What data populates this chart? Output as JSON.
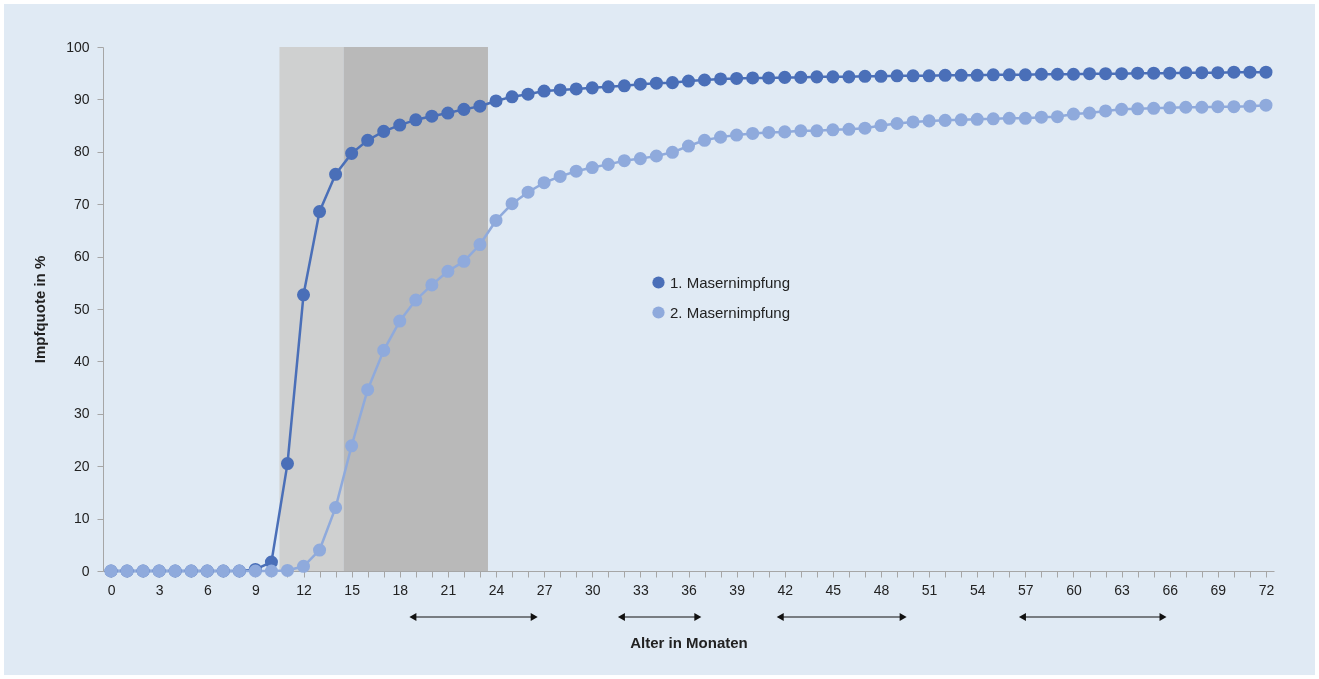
{
  "chart_data": {
    "type": "line",
    "xlabel": "Alter in Monaten",
    "ylabel": "Impfquote in %",
    "x": [
      0,
      1,
      2,
      3,
      4,
      5,
      6,
      7,
      8,
      9,
      10,
      11,
      12,
      13,
      14,
      15,
      16,
      17,
      18,
      19,
      20,
      21,
      22,
      23,
      24,
      25,
      26,
      27,
      28,
      29,
      30,
      31,
      32,
      33,
      34,
      35,
      36,
      37,
      38,
      39,
      40,
      41,
      42,
      43,
      44,
      45,
      46,
      47,
      48,
      49,
      50,
      51,
      52,
      53,
      54,
      55,
      56,
      57,
      58,
      59,
      60,
      61,
      62,
      63,
      64,
      65,
      66,
      67,
      68,
      69,
      70,
      71,
      72
    ],
    "series": [
      {
        "name": "1. Masernimpfung",
        "color": "#4a6fb8",
        "values": [
          0,
          0,
          0,
          0,
          0,
          0,
          0,
          0,
          0,
          0.3,
          1.7,
          20.5,
          52.7,
          68.6,
          75.7,
          79.7,
          82.2,
          83.9,
          85.1,
          86.1,
          86.8,
          87.4,
          88.1,
          88.7,
          89.7,
          90.5,
          91.0,
          91.6,
          91.8,
          92.0,
          92.2,
          92.4,
          92.6,
          92.9,
          93.1,
          93.2,
          93.5,
          93.7,
          93.9,
          94.0,
          94.1,
          94.1,
          94.2,
          94.2,
          94.3,
          94.3,
          94.3,
          94.4,
          94.4,
          94.5,
          94.5,
          94.5,
          94.6,
          94.6,
          94.6,
          94.7,
          94.7,
          94.7,
          94.8,
          94.8,
          94.8,
          94.9,
          94.9,
          94.9,
          95.0,
          95.0,
          95.0,
          95.1,
          95.1,
          95.1,
          95.2,
          95.2,
          95.2
        ]
      },
      {
        "name": "2. Masernimpfung",
        "color": "#8faadc",
        "values": [
          0,
          0,
          0,
          0,
          0,
          0,
          0,
          0,
          0,
          0,
          0,
          0.1,
          0.9,
          4.0,
          12.1,
          23.9,
          34.6,
          42.1,
          47.7,
          51.7,
          54.6,
          57.2,
          59.1,
          62.3,
          66.9,
          70.1,
          72.3,
          74.1,
          75.3,
          76.3,
          77.0,
          77.6,
          78.3,
          78.7,
          79.2,
          79.9,
          81.1,
          82.2,
          82.8,
          83.2,
          83.5,
          83.7,
          83.8,
          84.0,
          84.0,
          84.2,
          84.3,
          84.5,
          85.0,
          85.4,
          85.7,
          85.9,
          86.0,
          86.1,
          86.2,
          86.3,
          86.4,
          86.4,
          86.6,
          86.7,
          87.2,
          87.4,
          87.8,
          88.1,
          88.2,
          88.3,
          88.4,
          88.5,
          88.5,
          88.6,
          88.6,
          88.7,
          88.9
        ]
      }
    ],
    "xlim": [
      -0.5,
      72.5
    ],
    "xticks": [
      0,
      {
        "value": 1,
        "label": null
      },
      {
        "value": 2,
        "label": null
      },
      3,
      {
        "value": 4,
        "label": null
      },
      {
        "value": 5,
        "label": null
      },
      6,
      {
        "value": 7,
        "label": null
      },
      {
        "value": 8,
        "label": null
      },
      9,
      {
        "value": 10,
        "label": null
      },
      {
        "value": 11,
        "label": null
      },
      12,
      {
        "value": 13,
        "label": null
      },
      {
        "value": 14,
        "label": null
      },
      15,
      {
        "value": 16,
        "label": null
      },
      {
        "value": 17,
        "label": null
      },
      18,
      {
        "value": 19,
        "label": null
      },
      {
        "value": 20,
        "label": null
      },
      21,
      {
        "value": 22,
        "label": null
      },
      {
        "value": 23,
        "label": null
      },
      24,
      {
        "value": 25,
        "label": null
      },
      {
        "value": 26,
        "label": null
      },
      27,
      {
        "value": 28,
        "label": null
      },
      {
        "value": 29,
        "label": null
      },
      30,
      {
        "value": 31,
        "label": null
      },
      {
        "value": 32,
        "label": null
      },
      33,
      {
        "value": 34,
        "label": null
      },
      {
        "value": 35,
        "label": null
      },
      36,
      {
        "value": 37,
        "label": null
      },
      {
        "value": 38,
        "label": null
      },
      39,
      {
        "value": 40,
        "label": null
      },
      {
        "value": 41,
        "label": null
      },
      42,
      {
        "value": 43,
        "label": null
      },
      {
        "value": 44,
        "label": null
      },
      45,
      {
        "value": 46,
        "label": null
      },
      {
        "value": 47,
        "label": null
      },
      48,
      {
        "value": 49,
        "label": null
      },
      {
        "value": 50,
        "label": null
      },
      51,
      {
        "value": 52,
        "label": null
      },
      {
        "value": 53,
        "label": null
      },
      54,
      {
        "value": 55,
        "label": null
      },
      {
        "value": 56,
        "label": null
      },
      57,
      {
        "value": 58,
        "label": null
      },
      {
        "value": 59,
        "label": null
      },
      60,
      {
        "value": 61,
        "label": null
      },
      {
        "value": 62,
        "label": null
      },
      63,
      {
        "value": 64,
        "label": null
      },
      {
        "value": 65,
        "label": null
      },
      66,
      {
        "value": 67,
        "label": null
      },
      {
        "value": 68,
        "label": null
      },
      69,
      {
        "value": 70,
        "label": null
      },
      {
        "value": 71,
        "label": null
      },
      72
    ],
    "ylim": [
      0,
      100
    ],
    "yticks": [
      0,
      10,
      20,
      30,
      40,
      50,
      60,
      70,
      80,
      90,
      100
    ],
    "bands": [
      {
        "axis": "x",
        "from": 10.5,
        "to": 14.5,
        "color": "#cfd0d0"
      },
      {
        "axis": "x",
        "from": 14.5,
        "to": 23.5,
        "color": "#b9b9b9"
      }
    ],
    "marker": "circle",
    "line_style": "solid",
    "legend": "right",
    "grid": false
  }
}
